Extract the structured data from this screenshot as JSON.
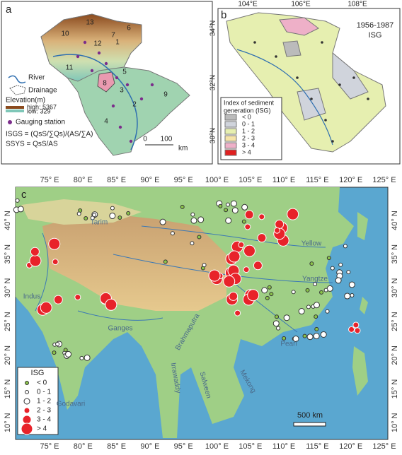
{
  "panel_a": {
    "label": "a",
    "basin_numbers": [
      "1",
      "2",
      "3",
      "4",
      "5",
      "6",
      "7",
      "8",
      "9",
      "10",
      "11",
      "12",
      "13"
    ],
    "legend": {
      "river": "River",
      "drainage": "Drainage",
      "elevation_title": "Elevation(m)",
      "high": "high: 5367",
      "low": "low: 329",
      "station": "Gauging station"
    },
    "formulas": [
      "ISGS = (QsS/∑Qs)/(AS/∑A)",
      "SSYS = QsS/AS"
    ],
    "scale": [
      "0",
      "100",
      "km"
    ]
  },
  "panel_b": {
    "label": "b",
    "lon_ticks": [
      "104°E",
      "106°E",
      "108°E"
    ],
    "lat_ticks": [
      "34°N",
      "32°N",
      "30°N"
    ],
    "period": "1956-1987",
    "index_name": "ISG",
    "legend_title": [
      "Index of sediment",
      "generation  (ISG)"
    ],
    "legend_items": [
      "< 0",
      "0 - 1",
      "1 - 2",
      "2 - 3",
      "3 - 4",
      "> 4"
    ]
  },
  "panel_c": {
    "label": "c",
    "lon_ticks": [
      "75° E",
      "80° E",
      "85° E",
      "90° E",
      "95° E",
      "100° E",
      "105° E",
      "110° E",
      "115° E",
      "120° E",
      "125° E"
    ],
    "lat_ticks": [
      "40° N",
      "35° N",
      "30° N",
      "25° N",
      "20° N",
      "15° N",
      "10° N"
    ],
    "rivers": [
      "Tarim",
      "Indus",
      "Ganges",
      "Brahmaputra",
      "Irrawaddy",
      "Salween",
      "Mekong",
      "Godavari",
      "Yellow",
      "Yangtze",
      "Pearl"
    ],
    "legend_title": "ISG",
    "legend_items": [
      "< 0",
      "0 - 1",
      "1 - 2",
      "2 - 3",
      "3 - 4",
      "> 4"
    ],
    "scale": "500 km"
  }
}
